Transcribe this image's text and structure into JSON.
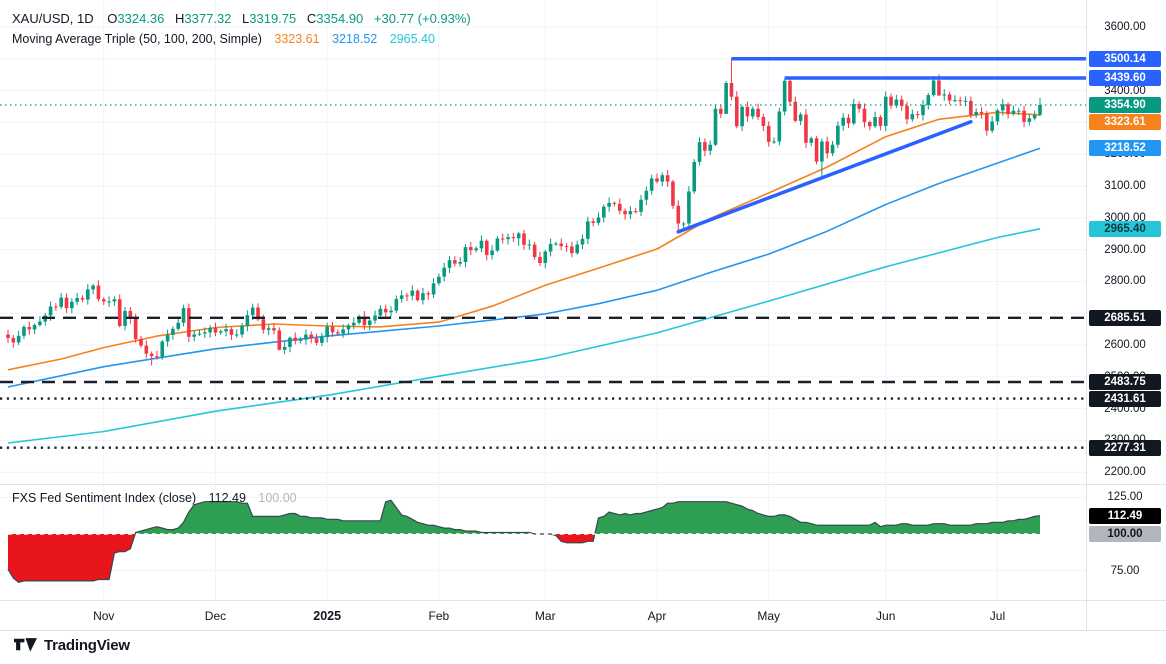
{
  "header": {
    "title": "XAU/USD, 1D",
    "ohlc": [
      {
        "k": "O",
        "v": "3324.36"
      },
      {
        "k": "H",
        "v": "3377.32"
      },
      {
        "k": "L",
        "v": "3319.75"
      },
      {
        "k": "C",
        "v": "3354.90"
      }
    ],
    "change": "+30.77 (+0.93%)",
    "ma_label": "Moving Average Triple (50, 100, 200, Simple)",
    "ma_values": [
      "3323.61",
      "3218.52",
      "2965.40"
    ]
  },
  "indicator_header": {
    "label": "FXS Fed Sentiment Index (close)",
    "value": "112.49",
    "baseline": "100.00"
  },
  "footer": {
    "brand": "TradingView"
  },
  "colors": {
    "up": "#089981",
    "down": "#F23645",
    "ma50": "#F7821C",
    "ma100": "#2196F3",
    "ma200": "#26C6DA",
    "trend": "#2962FF",
    "level_dark": "#1B1F2A",
    "sent_green": "#2E9E53",
    "sent_red": "#E8151D",
    "sent_outline": "#37474F",
    "grid": "#F0F3FA",
    "separator": "#E0E3EB",
    "axis_text": "#131722",
    "text_muted": "#B2B5BE"
  },
  "price_axis": {
    "plain_labels": [
      3600,
      3400,
      3200,
      3100,
      3000,
      2900,
      2800,
      2600,
      2500,
      2400,
      2300,
      2200
    ],
    "badges": [
      {
        "label": "3500.14",
        "value": 3500.14,
        "bg": "#2962FF",
        "fg": "#FFFFFF"
      },
      {
        "label": "3439.60",
        "value": 3439.6,
        "bg": "#2962FF",
        "fg": "#FFFFFF"
      },
      {
        "label": "3354.90",
        "value": 3354.9,
        "bg": "#089981",
        "fg": "#FFFFFF"
      },
      {
        "label": "3323.61",
        "value": 3323.61,
        "bg": "#F7821C",
        "fg": "#FFFFFF"
      },
      {
        "label": "3218.52",
        "value": 3218.52,
        "bg": "#2196F3",
        "fg": "#FFFFFF"
      },
      {
        "label": "2965.40",
        "value": 2965.4,
        "bg": "#26C6DA",
        "fg": "#0C3A40"
      },
      {
        "label": "2685.51",
        "value": 2685.51,
        "bg": "#131722",
        "fg": "#FFFFFF"
      },
      {
        "label": "2483.75",
        "value": 2483.75,
        "bg": "#131722",
        "fg": "#FFFFFF"
      },
      {
        "label": "2431.61",
        "value": 2431.61,
        "bg": "#131722",
        "fg": "#FFFFFF"
      },
      {
        "label": "2277.31",
        "value": 2277.31,
        "bg": "#131722",
        "fg": "#FFFFFF"
      }
    ]
  },
  "indicator_axis": {
    "plain_labels": [
      125,
      75
    ],
    "badges": [
      {
        "label": "112.49",
        "value": 112.49,
        "bg": "#000000",
        "fg": "#FFFFFF"
      },
      {
        "label": "100.00",
        "value": 100,
        "bg": "#B2B5BE",
        "fg": "#131722"
      }
    ]
  },
  "time_axis": {
    "labels": [
      {
        "text": "Nov",
        "index": 18,
        "bold": false
      },
      {
        "text": "Dec",
        "index": 39,
        "bold": false
      },
      {
        "text": "2025",
        "index": 60,
        "bold": true
      },
      {
        "text": "Feb",
        "index": 81,
        "bold": false
      },
      {
        "text": "Mar",
        "index": 101,
        "bold": false
      },
      {
        "text": "Apr",
        "index": 122,
        "bold": false
      },
      {
        "text": "May",
        "index": 143,
        "bold": false
      },
      {
        "text": "Jun",
        "index": 165,
        "bold": false
      },
      {
        "text": "Jul",
        "index": 186,
        "bold": false
      }
    ]
  },
  "chart_data": {
    "type": "candlestick",
    "symbol": "XAU/USD",
    "interval": "1D",
    "grid": true,
    "price_range": {
      "top": 3685,
      "bottom": 2163
    },
    "price_gridlines": [
      2200,
      2300,
      2400,
      2500,
      2600,
      2700,
      2800,
      2900,
      3000,
      3100,
      3200,
      3300,
      3400,
      3500,
      3600
    ],
    "first_open": 2633,
    "closes": [
      2622,
      2608,
      2629,
      2657,
      2649,
      2663,
      2674,
      2693,
      2721,
      2720,
      2749,
      2716,
      2736,
      2748,
      2743,
      2775,
      2787,
      2744,
      2737,
      2737,
      2744,
      2660,
      2707,
      2684,
      2619,
      2598,
      2573,
      2565,
      2563,
      2611,
      2632,
      2651,
      2670,
      2716,
      2626,
      2633,
      2636,
      2640,
      2654,
      2639,
      2643,
      2650,
      2632,
      2633,
      2660,
      2694,
      2718,
      2681,
      2648,
      2653,
      2646,
      2585,
      2594,
      2623,
      2613,
      2617,
      2633,
      2621,
      2607,
      2625,
      2658,
      2640,
      2636,
      2649,
      2662,
      2670,
      2690,
      2663,
      2677,
      2693,
      2714,
      2703,
      2708,
      2745,
      2756,
      2755,
      2771,
      2741,
      2763,
      2759,
      2794,
      2815,
      2843,
      2867,
      2856,
      2861,
      2908,
      2898,
      2904,
      2928,
      2883,
      2897,
      2935,
      2933,
      2939,
      2936,
      2951,
      2915,
      2916,
      2877,
      2858,
      2894,
      2918,
      2919,
      2911,
      2910,
      2889,
      2916,
      2934,
      2989,
      2984,
      3001,
      3035,
      3047,
      3044,
      3022,
      3011,
      3021,
      3019,
      3057,
      3085,
      3124,
      3114,
      3134,
      3114,
      3038,
      2982,
      2982,
      3083,
      3176,
      3238,
      3211,
      3230,
      3343,
      3327,
      3424,
      3381,
      3288,
      3349,
      3319,
      3343,
      3317,
      3289,
      3239,
      3240,
      3334,
      3431,
      3365,
      3305,
      3325,
      3236,
      3250,
      3177,
      3240,
      3203,
      3230,
      3290,
      3315,
      3297,
      3358,
      3343,
      3301,
      3288,
      3317,
      3289,
      3381,
      3353,
      3372,
      3352,
      3310,
      3326,
      3323,
      3355,
      3386,
      3432,
      3385,
      3388,
      3369,
      3370,
      3368,
      3368,
      3323,
      3333,
      3328,
      3274,
      3303,
      3338,
      3357,
      3326,
      3337,
      3337,
      3302,
      3313,
      3324,
      3354.9
    ],
    "wick_overrides": {
      "27": [
        2580,
        2536
      ],
      "51": [
        2656,
        2583
      ],
      "96": [
        2956,
        2912
      ],
      "126": [
        3055,
        2957
      ],
      "135": [
        3430,
        3329
      ],
      "136": [
        3500,
        3370
      ],
      "146": [
        3438,
        3322
      ],
      "152": [
        3257,
        3168
      ],
      "153": [
        3249,
        3120
      ],
      "174": [
        3446,
        3381
      ],
      "175": [
        3451,
        3383
      ],
      "194": [
        3377.32,
        3319.75
      ]
    },
    "series": [
      {
        "name": "SMA 200",
        "color": "ma200",
        "width": 1.6,
        "points": [
          [
            0,
            2292
          ],
          [
            18,
            2328
          ],
          [
            39,
            2392
          ],
          [
            60,
            2442
          ],
          [
            81,
            2502
          ],
          [
            101,
            2558
          ],
          [
            122,
            2638
          ],
          [
            143,
            2738
          ],
          [
            165,
            2846
          ],
          [
            186,
            2938
          ],
          [
            194,
            2965.4
          ]
        ]
      },
      {
        "name": "SMA 100",
        "color": "ma100",
        "width": 1.6,
        "points": [
          [
            0,
            2468
          ],
          [
            18,
            2532
          ],
          [
            39,
            2588
          ],
          [
            60,
            2628
          ],
          [
            81,
            2660
          ],
          [
            101,
            2698
          ],
          [
            111,
            2730
          ],
          [
            122,
            2772
          ],
          [
            132,
            2828
          ],
          [
            143,
            2886
          ],
          [
            154,
            2958
          ],
          [
            165,
            3042
          ],
          [
            175,
            3108
          ],
          [
            186,
            3172
          ],
          [
            194,
            3218.5
          ]
        ]
      },
      {
        "name": "SMA 50",
        "color": "ma50",
        "width": 1.6,
        "points": [
          [
            0,
            2522
          ],
          [
            10,
            2556
          ],
          [
            18,
            2592
          ],
          [
            28,
            2628
          ],
          [
            39,
            2655
          ],
          [
            50,
            2666
          ],
          [
            60,
            2660
          ],
          [
            70,
            2657
          ],
          [
            81,
            2672
          ],
          [
            91,
            2722
          ],
          [
            101,
            2788
          ],
          [
            111,
            2842
          ],
          [
            122,
            2902
          ],
          [
            132,
            2998
          ],
          [
            143,
            3078
          ],
          [
            154,
            3160
          ],
          [
            165,
            3255
          ],
          [
            175,
            3310
          ],
          [
            186,
            3332
          ],
          [
            194,
            3323.6
          ]
        ]
      }
    ],
    "levels": [
      {
        "value": 3500.14,
        "style": "solid",
        "color": "trend",
        "width": 3.5,
        "from_index": 136
      },
      {
        "value": 3439.6,
        "style": "solid",
        "color": "trend",
        "width": 3.5,
        "from_index": 146
      },
      {
        "value": 2685.51,
        "style": "dashed",
        "color": "level_dark",
        "width": 2.4,
        "from_index": -1
      },
      {
        "value": 2483.75,
        "style": "dashed",
        "color": "level_dark",
        "width": 2.4,
        "from_index": -1
      },
      {
        "value": 2431.61,
        "style": "dotted",
        "color": "level_dark",
        "width": 2.4,
        "from_index": -1
      },
      {
        "value": 2277.31,
        "style": "dotted",
        "color": "level_dark",
        "width": 2.4,
        "from_index": -1
      },
      {
        "value": 3354.9,
        "style": "fine-dotted",
        "color": "up",
        "width": 1.2,
        "from_index": -1
      }
    ],
    "trendline": {
      "from": [
        126,
        2956
      ],
      "to": [
        181,
        3302
      ],
      "color": "trend",
      "width": 3.5
    },
    "sentiment": {
      "type": "area",
      "name": "FXS Fed Sentiment Index",
      "baseline": 100,
      "last_value": 112.49,
      "value_range": {
        "top": 133.8,
        "bottom": 55.4
      },
      "gridlines": [
        125,
        75
      ],
      "values": [
        76,
        70,
        67,
        68,
        68,
        68,
        68,
        68,
        68,
        68,
        68,
        68,
        68,
        68,
        68,
        68,
        68,
        69,
        69,
        69,
        87,
        88,
        88,
        90,
        101,
        102,
        103,
        104,
        105,
        104,
        103,
        103,
        104,
        108,
        115,
        120,
        121,
        122,
        122,
        122,
        122,
        122,
        122,
        122,
        121,
        121,
        112,
        112,
        112,
        112,
        112,
        112,
        113,
        114,
        114,
        112,
        112,
        111,
        111,
        111,
        110,
        110,
        110,
        109,
        109,
        109,
        109,
        109,
        109,
        109,
        109,
        122,
        123,
        118,
        113,
        112,
        110,
        108,
        107,
        106,
        106,
        105,
        104,
        104,
        103,
        103,
        102,
        102,
        102,
        101,
        101,
        101,
        101,
        101,
        101,
        101,
        101,
        101,
        101,
        100,
        100,
        100,
        100,
        99,
        95,
        94,
        94,
        94,
        94,
        95,
        95,
        111,
        112,
        115,
        114,
        113,
        114,
        113,
        114,
        114,
        115,
        116,
        117,
        118,
        121,
        121,
        122,
        122,
        122,
        122,
        122,
        122,
        122,
        122,
        122,
        122,
        121,
        120,
        119,
        117,
        116,
        114,
        113,
        112,
        112,
        113,
        113,
        112,
        110,
        108,
        108,
        107,
        106,
        106,
        106,
        106,
        106,
        106,
        106,
        106,
        106,
        106,
        106,
        108,
        105,
        106,
        106,
        106,
        107,
        107,
        106,
        106,
        106,
        106,
        107,
        107,
        107,
        106,
        106,
        106,
        106,
        106,
        107,
        107,
        107,
        108,
        108,
        108,
        109,
        109,
        110,
        110,
        111,
        112,
        112.49
      ]
    }
  }
}
